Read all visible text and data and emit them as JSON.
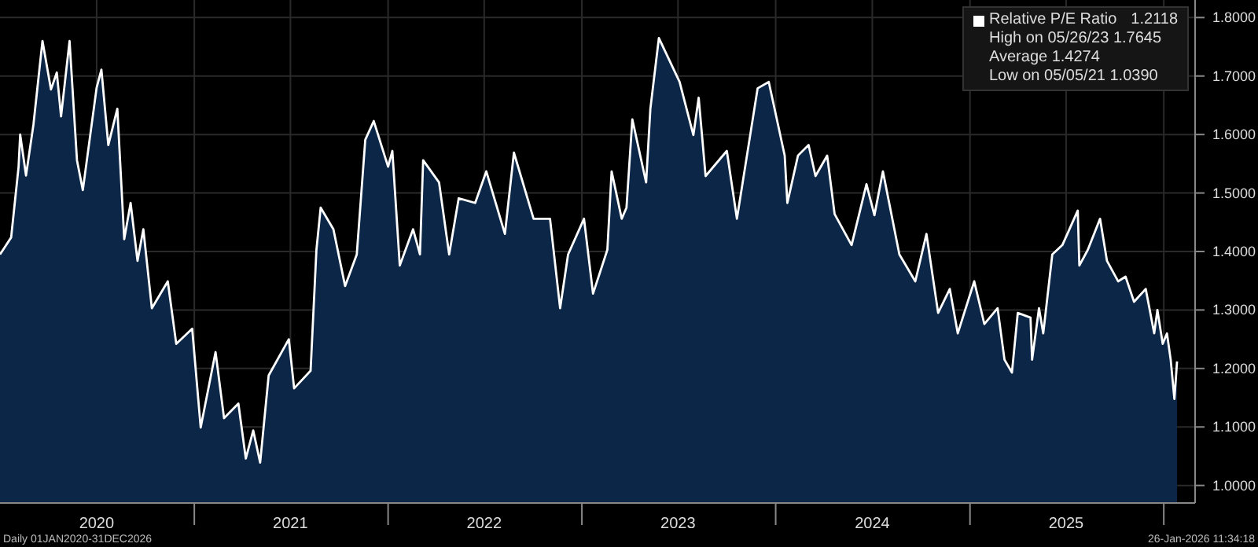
{
  "chart_data": {
    "type": "area",
    "x": [
      "2020-01-01",
      "2020-01-22",
      "2020-02-05",
      "2020-02-08",
      "2020-02-19",
      "2020-03-04",
      "2020-03-21",
      "2020-04-06",
      "2020-04-17",
      "2020-04-25",
      "2020-05-11",
      "2020-05-25",
      "2020-06-05",
      "2020-07-01",
      "2020-07-10",
      "2020-07-23",
      "2020-08-09",
      "2020-08-22",
      "2020-09-03",
      "2020-09-16",
      "2020-09-27",
      "2020-10-13",
      "2020-11-12",
      "2020-11-28",
      "2020-12-28",
      "2021-01-13",
      "2021-02-10",
      "2021-02-26",
      "2021-03-25",
      "2021-04-08",
      "2021-04-22",
      "2021-05-05",
      "2021-05-21",
      "2021-06-28",
      "2021-07-08",
      "2021-08-08",
      "2021-08-19",
      "2021-08-27",
      "2021-09-20",
      "2021-10-12",
      "2021-11-03",
      "2021-11-19",
      "2021-12-05",
      "2022-01-01",
      "2022-01-09",
      "2022-01-23",
      "2022-02-17",
      "2022-03-02",
      "2022-03-08",
      "2022-04-07",
      "2022-04-26",
      "2022-05-14",
      "2022-06-14",
      "2022-07-05",
      "2022-08-09",
      "2022-08-26",
      "2022-10-02",
      "2022-11-02",
      "2022-11-21",
      "2022-12-06",
      "2023-01-05",
      "2023-01-22",
      "2023-02-18",
      "2023-02-26",
      "2023-03-17",
      "2023-03-26",
      "2023-04-06",
      "2023-05-02",
      "2023-05-10",
      "2023-05-26",
      "2023-07-04",
      "2023-07-30",
      "2023-08-09",
      "2023-08-22",
      "2023-10-01",
      "2023-10-20",
      "2023-11-28",
      "2023-12-19",
      "2024-01-18",
      "2024-01-23",
      "2024-02-12",
      "2024-03-03",
      "2024-03-16",
      "2024-04-07",
      "2024-04-21",
      "2024-05-23",
      "2024-06-20",
      "2024-07-05",
      "2024-07-21",
      "2024-08-21",
      "2024-09-20",
      "2024-10-11",
      "2024-11-02",
      "2024-11-24",
      "2024-12-09",
      "2025-01-09",
      "2025-01-28",
      "2025-02-22",
      "2025-03-07",
      "2025-03-21",
      "2025-04-01",
      "2025-04-25",
      "2025-04-28",
      "2025-05-11",
      "2025-05-19",
      "2025-06-05",
      "2025-06-24",
      "2025-07-23",
      "2025-07-26",
      "2025-08-11",
      "2025-09-03",
      "2025-09-16",
      "2025-10-07",
      "2025-10-21",
      "2025-11-06",
      "2025-11-28",
      "2025-12-14",
      "2025-12-20",
      "2025-12-30",
      "2026-01-07",
      "2026-01-14",
      "2026-01-21",
      "2026-01-26"
    ],
    "series": [
      {
        "name": "Relative P/E Ratio",
        "color": "#ffffff",
        "values": [
          1.395,
          1.424,
          1.545,
          1.6,
          1.53,
          1.617,
          1.76,
          1.677,
          1.706,
          1.631,
          1.76,
          1.556,
          1.505,
          1.68,
          1.711,
          1.582,
          1.644,
          1.421,
          1.483,
          1.384,
          1.438,
          1.303,
          1.349,
          1.242,
          1.268,
          1.099,
          1.228,
          1.115,
          1.14,
          1.046,
          1.094,
          1.039,
          1.188,
          1.25,
          1.166,
          1.196,
          1.403,
          1.475,
          1.438,
          1.341,
          1.395,
          1.591,
          1.623,
          1.545,
          1.572,
          1.376,
          1.438,
          1.395,
          1.556,
          1.518,
          1.395,
          1.491,
          1.483,
          1.537,
          1.43,
          1.569,
          1.456,
          1.456,
          1.303,
          1.395,
          1.456,
          1.328,
          1.403,
          1.537,
          1.456,
          1.475,
          1.626,
          1.518,
          1.644,
          1.765,
          1.69,
          1.599,
          1.663,
          1.529,
          1.572,
          1.456,
          1.679,
          1.69,
          1.564,
          1.483,
          1.564,
          1.582,
          1.529,
          1.564,
          1.464,
          1.411,
          1.515,
          1.462,
          1.537,
          1.395,
          1.349,
          1.43,
          1.295,
          1.336,
          1.26,
          1.349,
          1.276,
          1.303,
          1.215,
          1.193,
          1.295,
          1.287,
          1.215,
          1.303,
          1.26,
          1.395,
          1.411,
          1.47,
          1.376,
          1.403,
          1.456,
          1.384,
          1.349,
          1.357,
          1.314,
          1.336,
          1.26,
          1.3,
          1.242,
          1.26,
          1.215,
          1.148,
          1.212
        ]
      }
    ],
    "xlim": [
      "2020-01-01",
      "2026-03-01"
    ],
    "xticks": [
      {
        "value": "2020-07-01",
        "label": "2020"
      },
      {
        "value": "2021-01-01",
        "label": null
      },
      {
        "value": "2021-07-01",
        "label": "2021"
      },
      {
        "value": "2022-01-01",
        "label": null
      },
      {
        "value": "2022-07-01",
        "label": "2022"
      },
      {
        "value": "2023-01-01",
        "label": null
      },
      {
        "value": "2023-07-01",
        "label": "2023"
      },
      {
        "value": "2024-01-01",
        "label": null
      },
      {
        "value": "2024-07-01",
        "label": "2024"
      },
      {
        "value": "2025-01-01",
        "label": null
      },
      {
        "value": "2025-07-01",
        "label": "2025"
      },
      {
        "value": "2026-01-01",
        "label": null
      }
    ],
    "ylim": [
      0.97,
      1.83
    ],
    "yticks": [
      {
        "value": 1.0,
        "label": "1.0000"
      },
      {
        "value": 1.1,
        "label": "1.1000"
      },
      {
        "value": 1.2,
        "label": "1.2000"
      },
      {
        "value": 1.3,
        "label": "1.3000"
      },
      {
        "value": 1.4,
        "label": "1.4000"
      },
      {
        "value": 1.5,
        "label": "1.5000"
      },
      {
        "value": 1.6,
        "label": "1.6000"
      },
      {
        "value": 1.7,
        "label": "1.7000"
      },
      {
        "value": 1.8,
        "label": "1.8000"
      }
    ],
    "grid": true,
    "legend": "top right",
    "annotations": [
      "1.2118",
      "High on 05/26/23 1.7645",
      "Average 1.4274",
      "Low on 05/05/21 1.0390",
      "Daily 01JAN2020-31DEC2026",
      "26-Jan-2026 11:34:18"
    ]
  }
}
